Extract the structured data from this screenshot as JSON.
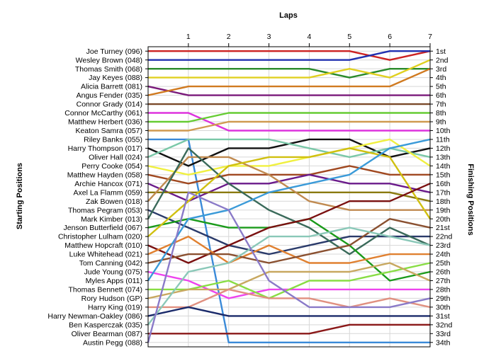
{
  "chart_data": {
    "type": "line",
    "title": "Laps",
    "ylabel_left": "Starting Positions",
    "ylabel_right": "Finishing Positions",
    "laps": [
      "1",
      "2",
      "3",
      "4",
      "5",
      "6",
      "7"
    ],
    "finishing_labels": [
      "1st",
      "2nd",
      "3rd",
      "4th",
      "5th",
      "6th",
      "7th",
      "8th",
      "9th",
      "10th",
      "11th",
      "12th",
      "13th",
      "14th",
      "15th",
      "16th",
      "17th",
      "18th",
      "19th",
      "20th",
      "21st",
      "22nd",
      "23rd",
      "24th",
      "25th",
      "26th",
      "27th",
      "28th",
      "29th",
      "30th",
      "31st",
      "32nd",
      "33rd",
      "34th"
    ],
    "series": [
      {
        "name": "Joe Turney (096)",
        "color": "#cc2222",
        "positions": [
          1,
          1,
          1,
          1,
          1,
          1,
          2,
          1
        ]
      },
      {
        "name": "Wesley Brown (048)",
        "color": "#2030b0",
        "positions": [
          2,
          2,
          2,
          2,
          2,
          2,
          1,
          1
        ]
      },
      {
        "name": "Thomas Smith (068)",
        "color": "#2a8a2a",
        "positions": [
          3,
          3,
          3,
          3,
          3,
          4,
          3,
          3
        ]
      },
      {
        "name": "Jay Keyes (088)",
        "color": "#e0d020",
        "positions": [
          4,
          4,
          4,
          4,
          4,
          3,
          4,
          2
        ]
      },
      {
        "name": "Alicia Barrett (081)",
        "color": "#7a1a7a",
        "positions": [
          5,
          6,
          6,
          6,
          6,
          6,
          6,
          6
        ]
      },
      {
        "name": "Angus Fender (035)",
        "color": "#d07a20",
        "positions": [
          6,
          5,
          5,
          5,
          5,
          5,
          5,
          3
        ]
      },
      {
        "name": "Connor Grady (014)",
        "color": "#7a4a2a",
        "positions": [
          7,
          7,
          7,
          7,
          7,
          7,
          7,
          7
        ]
      },
      {
        "name": "Connor McCarthy (061)",
        "color": "#dd33dd",
        "positions": [
          8,
          8,
          10,
          10,
          10,
          10,
          10,
          10
        ]
      },
      {
        "name": "Matthew Herbert (036)",
        "color": "#66cc33",
        "positions": [
          9,
          9,
          8,
          8,
          8,
          8,
          8,
          8
        ]
      },
      {
        "name": "Keaton Samra (057)",
        "color": "#d09a50",
        "positions": [
          10,
          10,
          9,
          9,
          9,
          9,
          9,
          9
        ]
      },
      {
        "name": "Riley Banks (055)",
        "color": "#3a8ad8",
        "positions": [
          11,
          11,
          34,
          34,
          34,
          34,
          34,
          34
        ]
      },
      {
        "name": "Harry Thompson (017)",
        "color": "#111111",
        "positions": [
          12,
          14,
          12,
          12,
          11,
          11,
          13,
          12
        ]
      },
      {
        "name": "Oliver Hall (024)",
        "color": "#7ac8a8",
        "positions": [
          13,
          11,
          11,
          11,
          12,
          13,
          12,
          13
        ]
      },
      {
        "name": "Perry Cooke (054)",
        "color": "#f0f040",
        "positions": [
          14,
          15,
          14,
          14,
          13,
          12,
          11,
          14
        ]
      },
      {
        "name": "Matthew Hayden (058)",
        "color": "#a04820",
        "positions": [
          15,
          16,
          15,
          15,
          15,
          14,
          15,
          15
        ]
      },
      {
        "name": "Archie Hancox (071)",
        "color": "#6a1a8a",
        "positions": [
          16,
          18,
          16,
          16,
          15,
          16,
          16,
          17
        ]
      },
      {
        "name": "Axel La Flamm (059)",
        "color": "#8a7a10",
        "positions": [
          17,
          17,
          17,
          17,
          17,
          17,
          17,
          18
        ]
      },
      {
        "name": "Zak Bowen (018)",
        "color": "#c08a50",
        "positions": [
          18,
          13,
          13,
          15,
          18,
          19,
          19,
          19
        ]
      },
      {
        "name": "Thomas Pegram (053)",
        "color": "#2a3a6a",
        "positions": [
          19,
          21,
          23,
          24,
          23,
          22,
          22,
          22
        ]
      },
      {
        "name": "Mark Kimber (013)",
        "color": "#3a6a5a",
        "positions": [
          20,
          12,
          16,
          19,
          21,
          24,
          21,
          23
        ]
      },
      {
        "name": "Jenson Butterfield (067)",
        "color": "#1a9a1a",
        "positions": [
          21,
          20,
          21,
          21,
          20,
          23,
          27,
          26
        ]
      },
      {
        "name": "Christopher Lulham (020)",
        "color": "#d0c010",
        "positions": [
          22,
          18,
          14,
          13,
          13,
          12,
          13,
          20
        ]
      },
      {
        "name": "Matthew Hopcraft (010)",
        "color": "#7a1010",
        "positions": [
          23,
          25,
          23,
          21,
          20,
          18,
          18,
          16
        ]
      },
      {
        "name": "Luke Whitehead (021)",
        "color": "#e08030",
        "positions": [
          24,
          22,
          25,
          23,
          25,
          25,
          24,
          24
        ]
      },
      {
        "name": "Tom Canning (042)",
        "color": "#8a5030",
        "positions": [
          25,
          24,
          24,
          25,
          24,
          23,
          20,
          21
        ]
      },
      {
        "name": "Jude Young (075)",
        "color": "#ee44ee",
        "positions": [
          26,
          27,
          29,
          28,
          28,
          28,
          28,
          28
        ]
      },
      {
        "name": "Myles Apps (011)",
        "color": "#3a9ad8",
        "positions": [
          27,
          20,
          19,
          17,
          16,
          15,
          12,
          11
        ]
      },
      {
        "name": "Thomas Bennett (074)",
        "color": "#88dd44",
        "positions": [
          28,
          28,
          27,
          29,
          27,
          27,
          26,
          25
        ]
      },
      {
        "name": "Rory Hudson (GP)",
        "color": "#c8a860",
        "positions": [
          29,
          28,
          28,
          26,
          26,
          26,
          25,
          27
        ]
      },
      {
        "name": "Harry King (019)",
        "color": "#e09080",
        "positions": [
          30,
          30,
          28,
          29,
          29,
          30,
          29,
          30
        ]
      },
      {
        "name": "Harry Newman-Oakley (086)",
        "color": "#1a2a6a",
        "positions": [
          31,
          30,
          31,
          31,
          31,
          31,
          31,
          31
        ]
      },
      {
        "name": "Ben Kasperczak (035)",
        "color": "#8ac8b8",
        "positions": [
          32,
          26,
          25,
          22,
          22,
          21,
          22,
          23
        ]
      },
      {
        "name": "Oliver Bearman (087)",
        "color": "#8a1818",
        "positions": [
          33,
          33,
          33,
          33,
          33,
          32,
          32,
          32
        ]
      },
      {
        "name": "Austin Pegg (088)",
        "color": "#8a7ac8",
        "positions": [
          34,
          17,
          19,
          27,
          30,
          30,
          30,
          29
        ]
      }
    ]
  }
}
